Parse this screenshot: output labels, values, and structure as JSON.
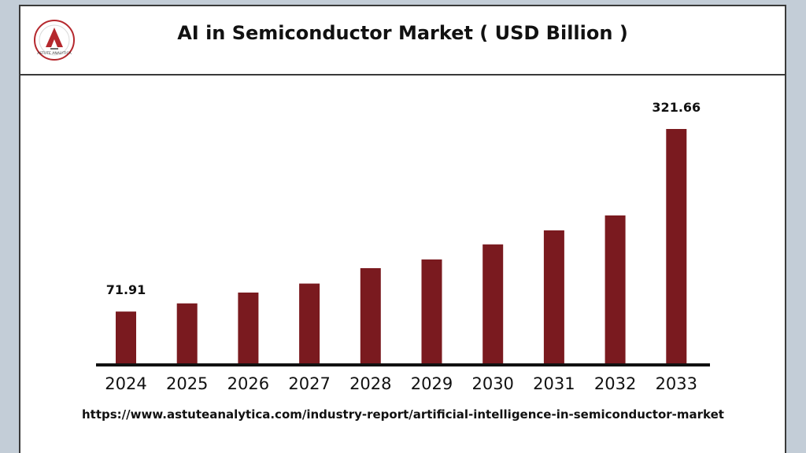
{
  "header": {
    "title": "AI in Semiconductor Market ( USD Billion )",
    "logo_text": "ASTUTE ANALYTICA"
  },
  "footer": {
    "url": "https://www.astuteanalytica.com/industry-report/artificial-intelligence-in-semiconductor-market"
  },
  "colors": {
    "bar": "#7a1a1f",
    "axis": "#111111",
    "background": "#ffffff",
    "page": "#c3cdd7"
  },
  "chart_data": {
    "type": "bar",
    "title": "AI in Semiconductor Market ( USD Billion )",
    "xlabel": "",
    "ylabel": "",
    "categories": [
      "2024",
      "2025",
      "2026",
      "2027",
      "2028",
      "2029",
      "2030",
      "2031",
      "2032",
      "2033"
    ],
    "values": [
      71.91,
      83.1,
      97.9,
      110.2,
      131.3,
      143.2,
      163.8,
      183.0,
      203.4,
      321.66
    ],
    "data_labels": [
      {
        "index": 0,
        "text": "71.91"
      },
      {
        "index": 9,
        "text": "321.66"
      }
    ],
    "grid": false,
    "legend": "none"
  }
}
